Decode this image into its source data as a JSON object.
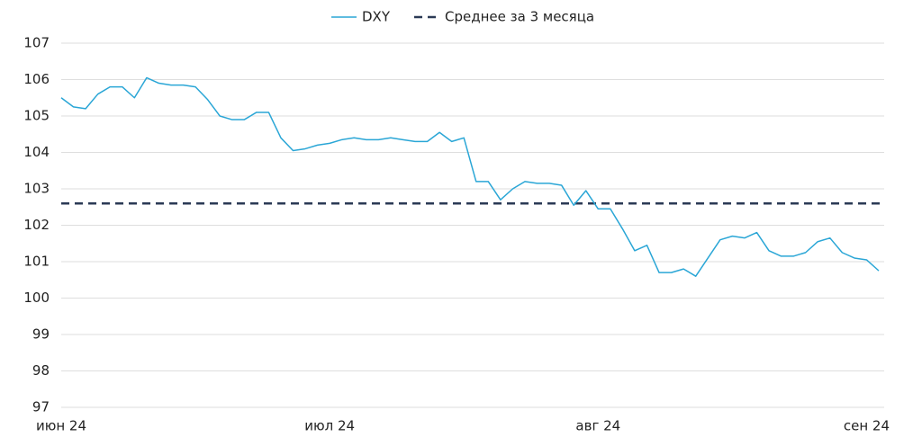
{
  "chart_data": {
    "type": "line",
    "categories": [
      "июн 24",
      null,
      null,
      null,
      null,
      null,
      null,
      null,
      null,
      null,
      null,
      null,
      null,
      null,
      null,
      null,
      null,
      null,
      null,
      null,
      null,
      null,
      "июл 24",
      null,
      null,
      null,
      null,
      null,
      null,
      null,
      null,
      null,
      null,
      null,
      null,
      null,
      null,
      null,
      null,
      null,
      null,
      null,
      null,
      null,
      "авг 24",
      null,
      null,
      null,
      null,
      null,
      null,
      null,
      null,
      null,
      null,
      null,
      null,
      null,
      null,
      null,
      null,
      null,
      null,
      null,
      null,
      null,
      "сен 24",
      null
    ],
    "series": [
      {
        "name": "DXY",
        "color": "#2aa6d6",
        "values": [
          105.5,
          105.25,
          105.2,
          105.6,
          105.8,
          105.8,
          105.5,
          106.05,
          105.9,
          105.85,
          105.85,
          105.8,
          105.45,
          105.0,
          104.9,
          104.9,
          105.1,
          105.1,
          104.4,
          104.05,
          104.1,
          104.2,
          104.25,
          104.35,
          104.4,
          104.35,
          104.35,
          104.4,
          104.35,
          104.3,
          104.3,
          104.55,
          104.3,
          104.4,
          103.2,
          103.2,
          102.7,
          103.0,
          103.2,
          103.15,
          103.15,
          103.1,
          102.55,
          102.95,
          102.45,
          102.45,
          101.9,
          101.3,
          101.45,
          100.7,
          100.7,
          100.8,
          100.6,
          101.1,
          101.6,
          101.7,
          101.65,
          101.8,
          101.3,
          101.15,
          101.15,
          101.25,
          101.55,
          101.65,
          101.25,
          101.1,
          101.05,
          100.75
        ]
      }
    ],
    "average": {
      "name": "Среднее за 3 месяца",
      "color": "#2b3a55",
      "value": 102.6
    },
    "ylim": [
      97,
      107
    ],
    "yticks": [
      97,
      98,
      99,
      100,
      101,
      102,
      103,
      104,
      105,
      106,
      107
    ],
    "grid": true,
    "legend": "top"
  }
}
